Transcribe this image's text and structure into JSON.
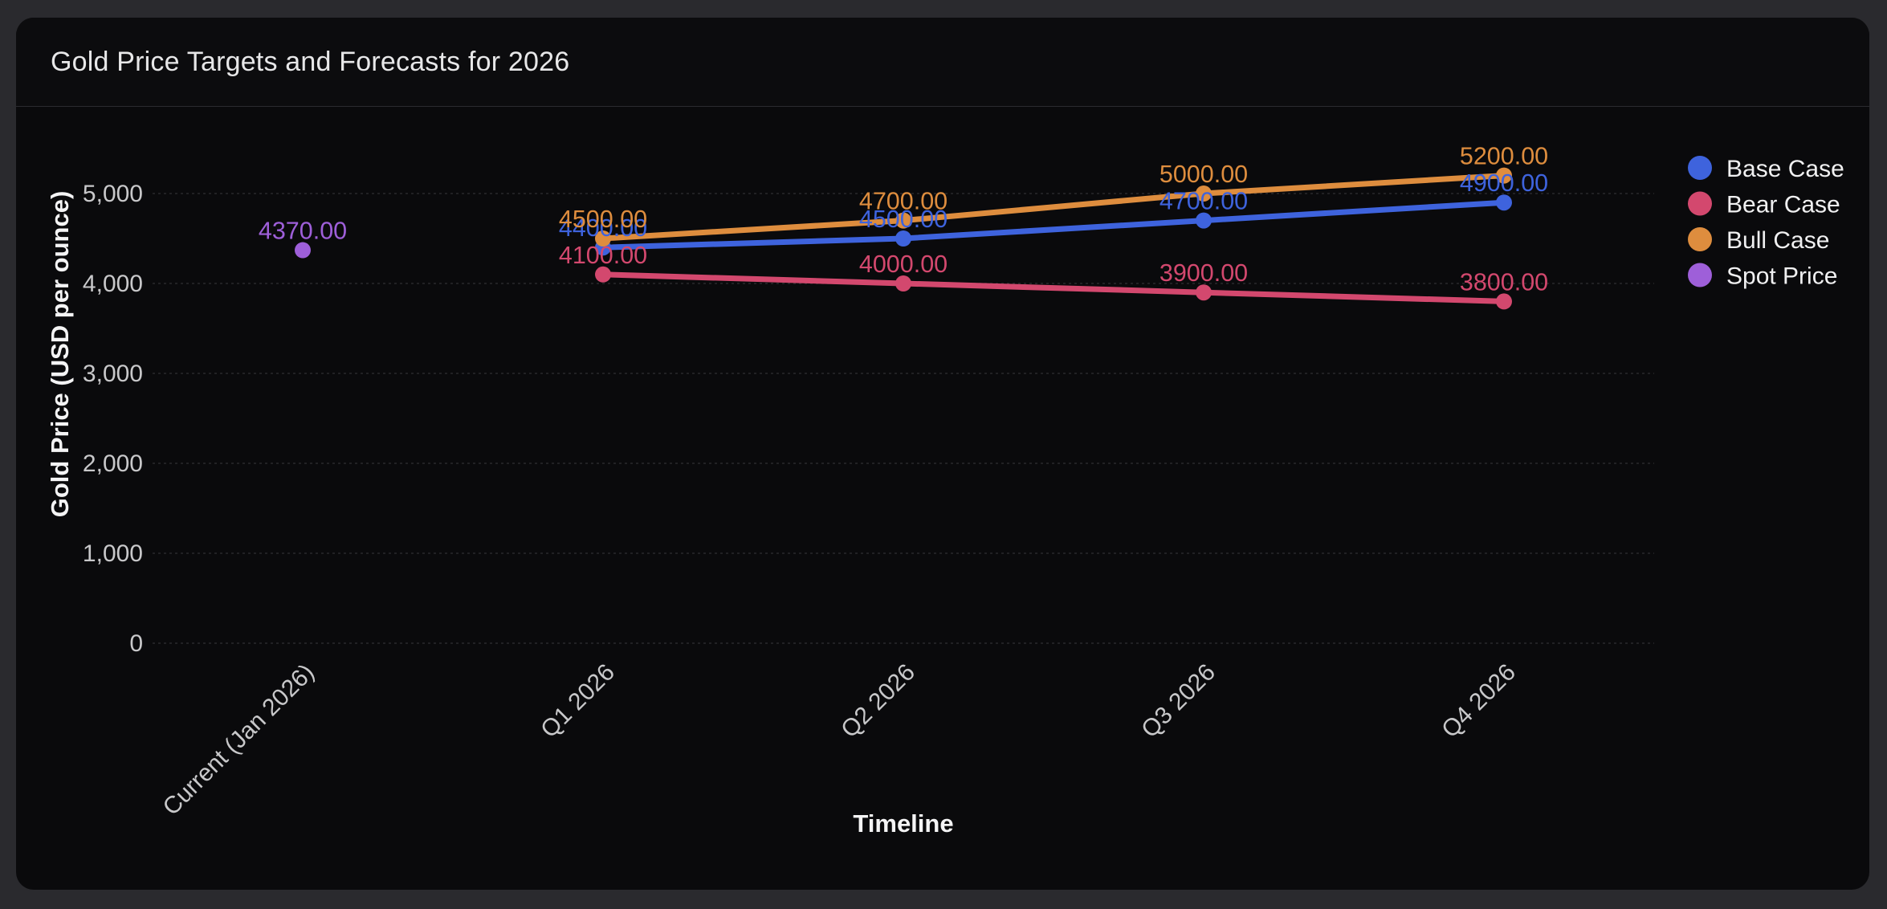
{
  "theme": {
    "page_bg": "#2a2a2e",
    "card_bg": "#0a0a0c",
    "divider": "#2b2b2f",
    "gridline": "#29292d",
    "tick_text": "#c8c8ca",
    "axis_title_text": "#f4f4f5",
    "legend_text": "#f0f0f1",
    "title_text": "#e7e7e8"
  },
  "chart_data": {
    "type": "line",
    "title": "Gold Price Targets and Forecasts for 2026",
    "xlabel": "Timeline",
    "ylabel": "Gold Price (USD per ounce)",
    "categories": [
      "Current (Jan 2026)",
      "Q1 2026",
      "Q2 2026",
      "Q3 2026",
      "Q4 2026"
    ],
    "series": [
      {
        "name": "Base Case",
        "color": "#3e63dd",
        "values": [
          null,
          4400,
          4500,
          4700,
          4900
        ]
      },
      {
        "name": "Bear Case",
        "color": "#d3486e",
        "values": [
          null,
          4100,
          4000,
          3900,
          3800
        ]
      },
      {
        "name": "Bull Case",
        "color": "#de8d3e",
        "values": [
          null,
          4500,
          4700,
          5000,
          5200
        ]
      },
      {
        "name": "Spot Price",
        "color": "#9e5fd9",
        "values": [
          4370,
          null,
          null,
          null,
          null
        ]
      }
    ],
    "point_label_decimals": 2,
    "y_ticks": [
      0,
      1000,
      2000,
      3000,
      4000,
      5000
    ],
    "y_tick_labels": [
      "0",
      "1,000",
      "2,000",
      "3,000",
      "4,000",
      "5,000"
    ],
    "ylim": [
      0,
      5000
    ],
    "grid": "horizontal-dashed",
    "legend_position": "right",
    "x_label_rotation": -45
  }
}
